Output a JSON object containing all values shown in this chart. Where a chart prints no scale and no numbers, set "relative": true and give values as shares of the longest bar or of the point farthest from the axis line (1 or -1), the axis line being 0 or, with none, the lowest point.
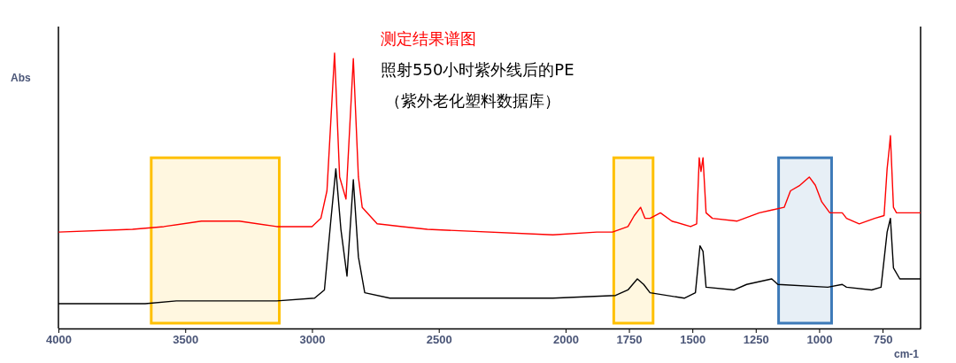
{
  "chart_data": {
    "type": "line",
    "relative": true,
    "xlabel": "cm-1",
    "ylabel": "Abs",
    "annotations": [
      "测定结果谱图",
      "照射550小时紫外线后的PE",
      "（紫外老化塑料数据库）"
    ],
    "xlim": [
      4000,
      600
    ],
    "xticks": [
      4000,
      3500,
      3000,
      2500,
      2000,
      1750,
      1500,
      1250,
      1000,
      750
    ],
    "grid": false,
    "bands": [
      {
        "axis": "x",
        "from": 3634,
        "to": 3129,
        "color": "#ffc000"
      },
      {
        "axis": "x",
        "from": 1810,
        "to": 1655,
        "color": "#ffc000"
      },
      {
        "axis": "x",
        "from": 1160,
        "to": 951,
        "color": "#3d7ab8"
      }
    ],
    "series": [
      {
        "color": "#ff0000",
        "x": [
          4000,
          3708,
          3584,
          3436,
          3287,
          3139,
          3000,
          2965,
          2941,
          2911,
          2891,
          2866,
          2837,
          2817,
          2802,
          2743,
          2644,
          2545,
          2050,
          1877,
          1815,
          1754,
          1729,
          1704,
          1687,
          1667,
          1626,
          1581,
          1507,
          1483,
          1473,
          1466,
          1458,
          1446,
          1421,
          1323,
          1236,
          1187,
          1138,
          1113,
          1076,
          1039,
          1015,
          990,
          958,
          909,
          892,
          842,
          781,
          744,
          732,
          724,
          719,
          707,
          695,
          600
        ],
        "values": [
          0.35,
          0.36,
          0.37,
          0.39,
          0.39,
          0.37,
          0.37,
          0.4,
          0.5,
          1.0,
          0.55,
          0.47,
          0.98,
          0.55,
          0.44,
          0.38,
          0.37,
          0.36,
          0.34,
          0.35,
          0.35,
          0.37,
          0.41,
          0.44,
          0.4,
          0.4,
          0.42,
          0.39,
          0.37,
          0.38,
          0.62,
          0.57,
          0.62,
          0.42,
          0.4,
          0.39,
          0.42,
          0.43,
          0.44,
          0.5,
          0.52,
          0.55,
          0.52,
          0.46,
          0.42,
          0.42,
          0.4,
          0.38,
          0.4,
          0.41,
          0.58,
          0.65,
          0.7,
          0.44,
          0.42,
          0.42
        ]
      },
      {
        "color": "#000000",
        "x": [
          4000,
          3658,
          3535,
          3139,
          2990,
          2951,
          2926,
          2906,
          2886,
          2862,
          2837,
          2817,
          2792,
          2693,
          2050,
          1803,
          1754,
          1717,
          1692,
          1667,
          1532,
          1488,
          1470,
          1458,
          1446,
          1335,
          1286,
          1187,
          1163,
          966,
          909,
          892,
          793,
          756,
          732,
          719,
          707,
          682,
          600
        ],
        "values": [
          0.09,
          0.09,
          0.1,
          0.1,
          0.11,
          0.14,
          0.39,
          0.58,
          0.36,
          0.19,
          0.54,
          0.26,
          0.13,
          0.11,
          0.11,
          0.12,
          0.14,
          0.18,
          0.16,
          0.13,
          0.11,
          0.13,
          0.3,
          0.28,
          0.15,
          0.14,
          0.16,
          0.18,
          0.16,
          0.15,
          0.16,
          0.15,
          0.14,
          0.15,
          0.35,
          0.4,
          0.22,
          0.18,
          0.18
        ]
      }
    ]
  }
}
